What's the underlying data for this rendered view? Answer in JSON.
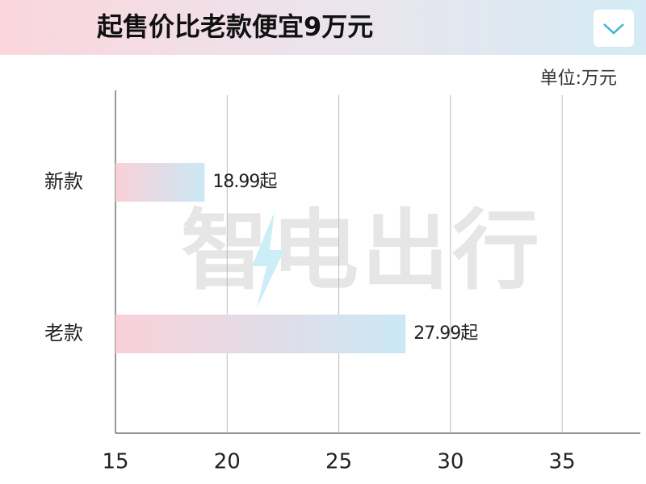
{
  "chart_data": {
    "type": "hbar",
    "title": "起售价比老款便宜9万元",
    "unit": "单位:万元",
    "watermark": "智电出行",
    "categories": [
      "新款",
      "老款"
    ],
    "values": [
      18.99,
      27.99
    ],
    "value_labels": [
      "18.99起",
      "27.99起"
    ],
    "color": [
      "#f9d0d8",
      "#cbe8f5"
    ],
    "xlim": [
      15,
      38.5
    ],
    "xticks": [
      15,
      20,
      25,
      30,
      35
    ],
    "grid": true
  }
}
